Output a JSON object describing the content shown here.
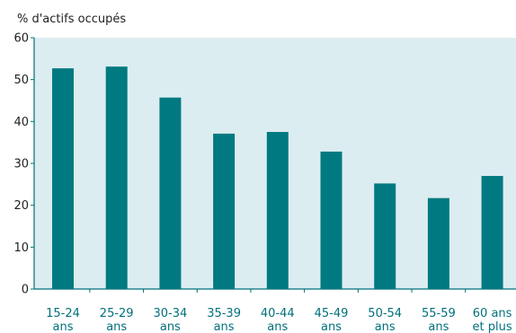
{
  "chart_data": {
    "type": "bar",
    "ylabel": "% d'actifs occupés",
    "ylim": [
      0,
      60
    ],
    "yticks": [
      0,
      10,
      20,
      30,
      40,
      50,
      60
    ],
    "categories": [
      [
        "15-24",
        "ans"
      ],
      [
        "25-29",
        "ans"
      ],
      [
        "30-34",
        "ans"
      ],
      [
        "35-39",
        "ans"
      ],
      [
        "40-44",
        "ans"
      ],
      [
        "45-49",
        "ans"
      ],
      [
        "50-54",
        "ans"
      ],
      [
        "55-59",
        "ans"
      ],
      [
        "60 ans",
        "et plus"
      ]
    ],
    "values": [
      52.7,
      53.1,
      45.7,
      37.1,
      37.5,
      32.8,
      25.2,
      21.7,
      27.0
    ],
    "grid": false,
    "legend": "none",
    "colors": {
      "bar": "#007a80",
      "plot_background": "#dcedf1",
      "axis": "#00707b",
      "category_text": "#00707b",
      "text": "#222222"
    }
  }
}
